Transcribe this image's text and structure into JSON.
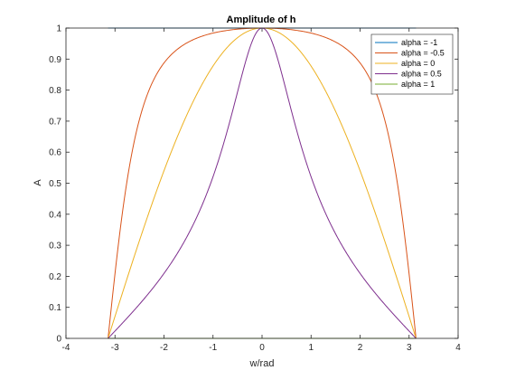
{
  "chart_data": {
    "type": "line",
    "title": "Amplitude of h",
    "xlabel": "w/rad",
    "ylabel": "A",
    "xlim": [
      -4,
      4
    ],
    "ylim": [
      0,
      1
    ],
    "xticks": [
      -4,
      -3,
      -2,
      -1,
      0,
      1,
      2,
      3,
      4
    ],
    "yticks": [
      0,
      0.1,
      0.2,
      0.3,
      0.4,
      0.5,
      0.6,
      0.7,
      0.8,
      0.9,
      1
    ],
    "x_range": [
      -3.1416,
      3.1416
    ],
    "grid": false,
    "legend_position": "top-right",
    "series": [
      {
        "name": "alpha = -1",
        "alpha": -1,
        "color": "#0072BD"
      },
      {
        "name": "alpha = -0.5",
        "alpha": -0.5,
        "color": "#D95319"
      },
      {
        "name": "alpha = 0",
        "alpha": 0,
        "color": "#EDB120"
      },
      {
        "name": "alpha = 0.5",
        "alpha": 0.5,
        "color": "#7E2F8E"
      },
      {
        "name": "alpha = 1",
        "alpha": 1,
        "color": "#77AC30"
      }
    ]
  }
}
